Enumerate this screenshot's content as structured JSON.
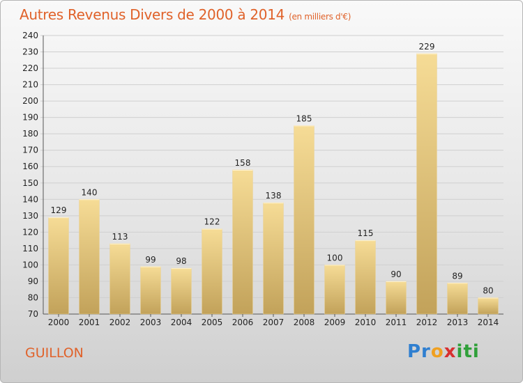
{
  "title": "Autres Revenus Divers de 2000 à 2014",
  "subtitle": "(en milliers d'€)",
  "commune": "GUILLON",
  "logo": {
    "part1": "Pr",
    "part2": "o",
    "part3": "x",
    "part4": "iti"
  },
  "colors": {
    "accent": "#e0622a",
    "bar_top": "#f6dc96",
    "bar_bottom": "#c2a25a",
    "grid": "#cfcfcf"
  },
  "chart_data": {
    "type": "bar",
    "categories": [
      "2000",
      "2001",
      "2002",
      "2003",
      "2004",
      "2005",
      "2006",
      "2007",
      "2008",
      "2009",
      "2010",
      "2011",
      "2012",
      "2013",
      "2014"
    ],
    "values": [
      129,
      140,
      113,
      99,
      98,
      122,
      158,
      138,
      185,
      100,
      115,
      90,
      229,
      89,
      80
    ],
    "title": "Autres Revenus Divers de 2000 à 2014",
    "subtitle": "(en milliers d'€)",
    "xlabel": "",
    "ylabel": "",
    "ylim": [
      70,
      240
    ],
    "yticks": [
      70,
      80,
      90,
      100,
      110,
      120,
      130,
      140,
      150,
      160,
      170,
      180,
      190,
      200,
      210,
      220,
      230,
      240
    ],
    "grid": true,
    "legend": "none"
  }
}
